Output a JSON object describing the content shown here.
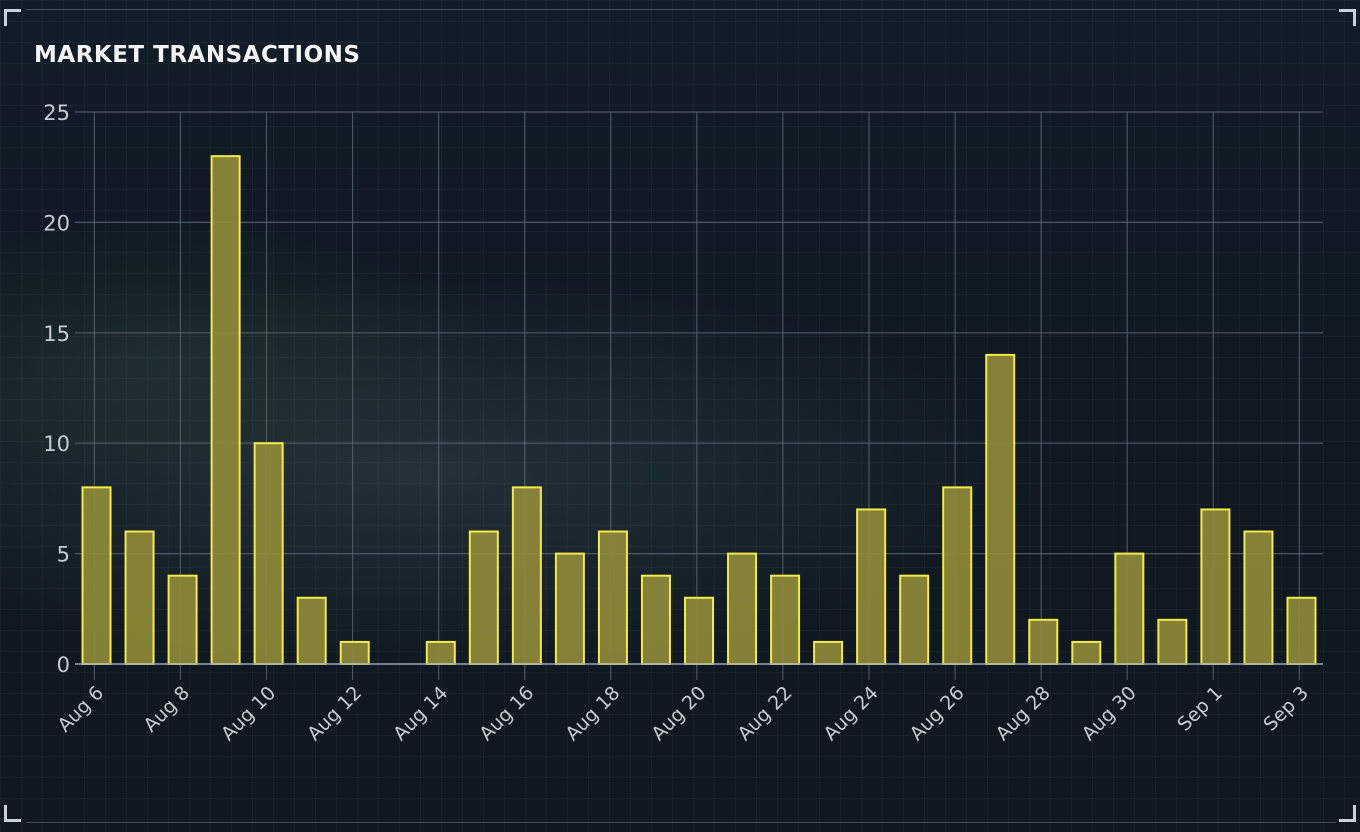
{
  "chart_data": {
    "type": "bar",
    "title": "MARKET TRANSACTIONS",
    "categories": [
      "Aug 6",
      "Aug 7",
      "Aug 8",
      "Aug 9",
      "Aug 10",
      "Aug 11",
      "Aug 12",
      "Aug 13",
      "Aug 14",
      "Aug 15",
      "Aug 16",
      "Aug 17",
      "Aug 18",
      "Aug 19",
      "Aug 20",
      "Aug 21",
      "Aug 22",
      "Aug 23",
      "Aug 24",
      "Aug 25",
      "Aug 26",
      "Aug 27",
      "Aug 28",
      "Aug 29",
      "Aug 30",
      "Aug 31",
      "Sep 1",
      "Sep 2",
      "Sep 3"
    ],
    "values": [
      8,
      6,
      4,
      23,
      10,
      3,
      1,
      0,
      1,
      6,
      8,
      5,
      6,
      4,
      3,
      5,
      4,
      1,
      7,
      4,
      8,
      14,
      2,
      1,
      5,
      2,
      7,
      6,
      3
    ],
    "x_tick_labels": [
      "Aug 6",
      "Aug 8",
      "Aug 10",
      "Aug 12",
      "Aug 14",
      "Aug 16",
      "Aug 18",
      "Aug 20",
      "Aug 22",
      "Aug 24",
      "Aug 26",
      "Aug 28",
      "Aug 30",
      "Sep 1",
      "Sep 3"
    ],
    "y_ticks": [
      0,
      5,
      10,
      15,
      20,
      25
    ],
    "ylim": [
      0,
      25
    ],
    "xlabel": "",
    "ylabel": "",
    "grid": true,
    "legend": "none",
    "colors": {
      "bar_fill": "#8f8a3a",
      "bar_stroke": "#f4ea48",
      "grid": "#5f6c78",
      "axis": "#9aa5af",
      "text": "#c4ccd3"
    }
  }
}
